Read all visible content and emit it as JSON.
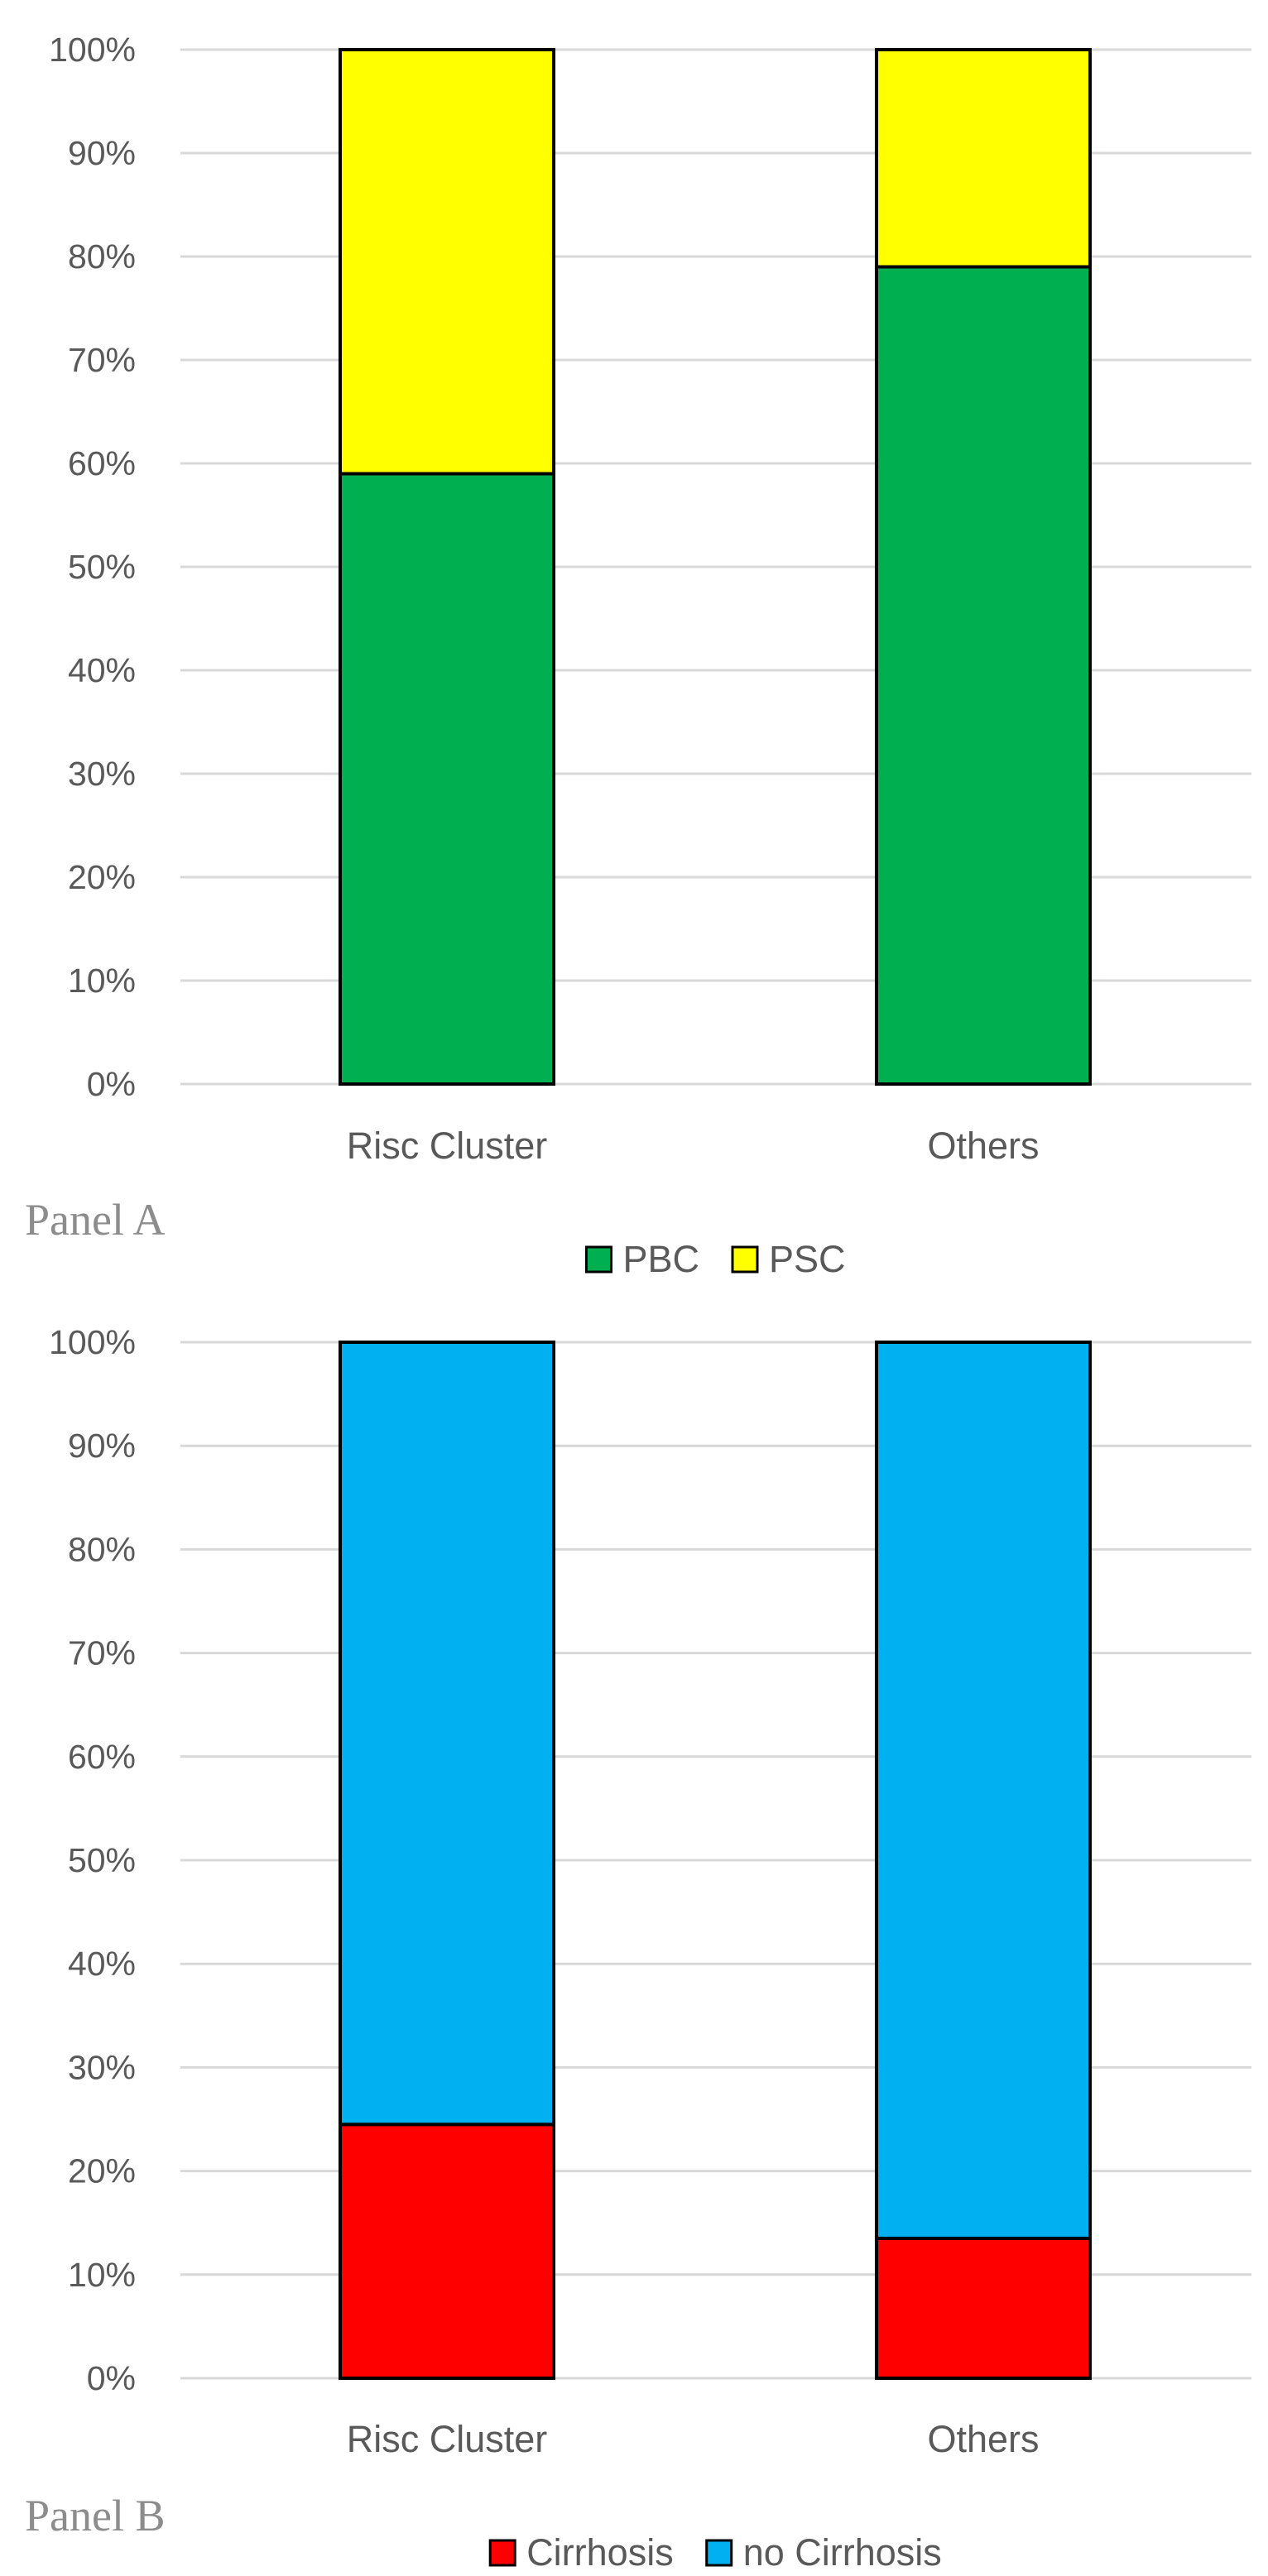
{
  "chart_data": [
    {
      "type": "bar",
      "stacked": true,
      "panel_label": "Panel A",
      "categories": [
        "Risc Cluster",
        "Others"
      ],
      "series": [
        {
          "name": "PBC",
          "values": [
            59,
            79
          ],
          "color": "#00b050"
        },
        {
          "name": "PSC",
          "values": [
            41,
            21
          ],
          "color": "#ffff00"
        }
      ],
      "yticks": [
        "0%",
        "10%",
        "20%",
        "30%",
        "40%",
        "50%",
        "60%",
        "70%",
        "80%",
        "90%",
        "100%"
      ],
      "ylim": [
        0,
        100
      ],
      "grid": true,
      "legend_position": "bottom"
    },
    {
      "type": "bar",
      "stacked": true,
      "panel_label": "Panel B",
      "categories": [
        "Risc Cluster",
        "Others"
      ],
      "series": [
        {
          "name": "Cirrhosis",
          "values": [
            24.5,
            13.5
          ],
          "color": "#ff0000"
        },
        {
          "name": "no Cirrhosis",
          "values": [
            75.5,
            86.5
          ],
          "color": "#00b0f0"
        }
      ],
      "yticks": [
        "0%",
        "10%",
        "20%",
        "30%",
        "40%",
        "50%",
        "60%",
        "70%",
        "80%",
        "90%",
        "100%"
      ],
      "ylim": [
        0,
        100
      ],
      "grid": true,
      "legend_position": "bottom"
    }
  ]
}
